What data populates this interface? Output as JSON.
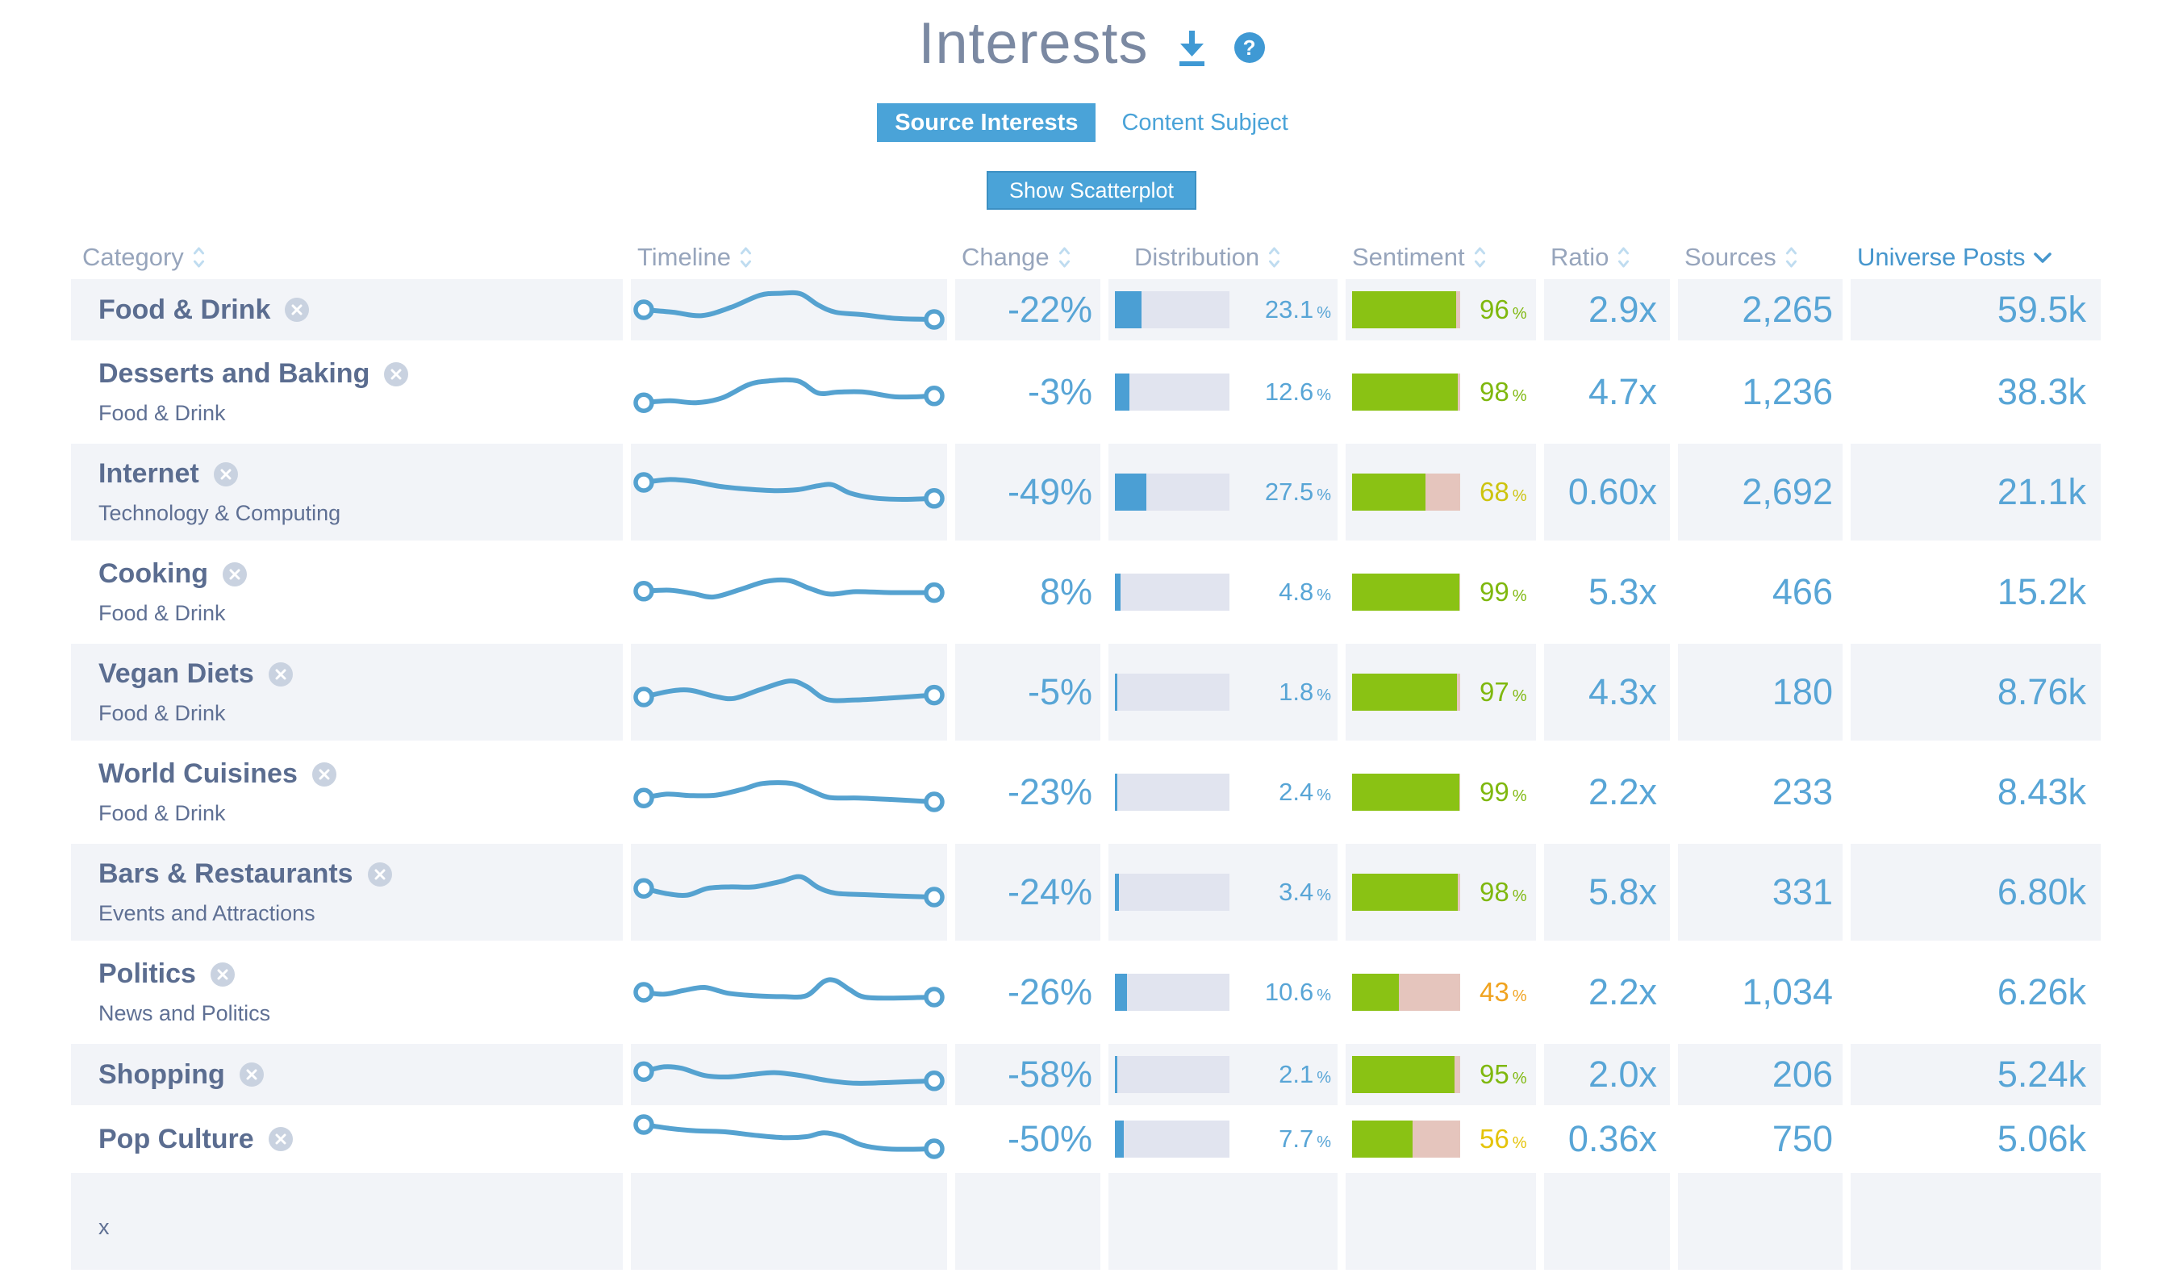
{
  "header": {
    "title": "Interests",
    "help_glyph": "?"
  },
  "tabs": [
    {
      "label": "Source Interests",
      "active": true
    },
    {
      "label": "Content Subject",
      "active": false
    }
  ],
  "scatterplot_button_label": "Show Scatterplot",
  "units": {
    "percent": "%"
  },
  "colors": {
    "accent_blue": "#4aa3d8",
    "value_blue": "#58a5d6",
    "sparkline_blue": "#55a2d0",
    "dist_fill": "#4b9fd4",
    "dist_track": "#e1e4ef",
    "sentiment_green_bar": "#8ac214",
    "sentiment_green_text": "#7fb80e",
    "sentiment_pink": "#e5c5bd",
    "sentiment_yellow_text": "#cdc40e",
    "sentiment_gold_text": "#e5c40a",
    "sentiment_orange_text": "#f0a31f",
    "row_shade": "#f2f4f8",
    "header_text": "#97a5bc",
    "sorted_header": "#4696cd",
    "category_text": "#5b6d90",
    "title_text": "#7b89a2"
  },
  "table": {
    "columns": [
      {
        "label": "Category",
        "sorted": false
      },
      {
        "label": "Timeline",
        "sorted": false
      },
      {
        "label": "Change",
        "sorted": false
      },
      {
        "label": "Distribution",
        "sorted": false
      },
      {
        "label": "Sentiment",
        "sorted": false
      },
      {
        "label": "Ratio",
        "sorted": false
      },
      {
        "label": "Sources",
        "sorted": false
      },
      {
        "label": "Universe Posts",
        "sorted": true
      }
    ],
    "rows": [
      {
        "name": "Food & Drink",
        "parent": "",
        "change": "-22%",
        "dist_value": "23.1",
        "dist_pct": 23.1,
        "sent_value": "96",
        "sent_pct": 96,
        "sent_color": "#7fb80e",
        "ratio": "2.9x",
        "sources": "2,265",
        "universe": "59.5k",
        "spark": [
          [
            0,
            0.5
          ],
          [
            0.1,
            0.55
          ],
          [
            0.2,
            0.62
          ],
          [
            0.3,
            0.45
          ],
          [
            0.4,
            0.2
          ],
          [
            0.47,
            0.16
          ],
          [
            0.54,
            0.17
          ],
          [
            0.6,
            0.4
          ],
          [
            0.66,
            0.55
          ],
          [
            0.75,
            0.6
          ],
          [
            0.87,
            0.68
          ],
          [
            1,
            0.7
          ]
        ]
      },
      {
        "name": "Desserts and Baking",
        "parent": "Food & Drink",
        "change": "-3%",
        "dist_value": "12.6",
        "dist_pct": 12.6,
        "sent_value": "98",
        "sent_pct": 98,
        "sent_color": "#7fb80e",
        "ratio": "4.7x",
        "sources": "1,236",
        "universe": "38.3k",
        "spark": [
          [
            0,
            0.72
          ],
          [
            0.09,
            0.68
          ],
          [
            0.18,
            0.72
          ],
          [
            0.27,
            0.62
          ],
          [
            0.36,
            0.35
          ],
          [
            0.43,
            0.27
          ],
          [
            0.53,
            0.27
          ],
          [
            0.6,
            0.52
          ],
          [
            0.67,
            0.5
          ],
          [
            0.76,
            0.5
          ],
          [
            0.87,
            0.6
          ],
          [
            1,
            0.58
          ]
        ]
      },
      {
        "name": "Internet",
        "parent": "Technology & Computing",
        "change": "-49%",
        "dist_value": "27.5",
        "dist_pct": 27.5,
        "sent_value": "68",
        "sent_pct": 68,
        "sent_color": "#cdc40e",
        "ratio": "0.60x",
        "sources": "2,692",
        "universe": "21.1k",
        "spark": [
          [
            0,
            0.3
          ],
          [
            0.09,
            0.24
          ],
          [
            0.17,
            0.28
          ],
          [
            0.26,
            0.38
          ],
          [
            0.36,
            0.44
          ],
          [
            0.45,
            0.47
          ],
          [
            0.53,
            0.45
          ],
          [
            0.6,
            0.37
          ],
          [
            0.65,
            0.35
          ],
          [
            0.71,
            0.52
          ],
          [
            0.79,
            0.62
          ],
          [
            0.89,
            0.65
          ],
          [
            1,
            0.63
          ]
        ]
      },
      {
        "name": "Cooking",
        "parent": "Food & Drink",
        "change": "8%",
        "dist_value": "4.8",
        "dist_pct": 4.8,
        "sent_value": "99",
        "sent_pct": 99,
        "sent_color": "#7fb80e",
        "ratio": "5.3x",
        "sources": "466",
        "universe": "15.2k",
        "spark": [
          [
            0,
            0.48
          ],
          [
            0.09,
            0.46
          ],
          [
            0.17,
            0.53
          ],
          [
            0.24,
            0.6
          ],
          [
            0.33,
            0.45
          ],
          [
            0.42,
            0.28
          ],
          [
            0.5,
            0.26
          ],
          [
            0.57,
            0.42
          ],
          [
            0.64,
            0.54
          ],
          [
            0.73,
            0.49
          ],
          [
            0.85,
            0.51
          ],
          [
            1,
            0.51
          ]
        ]
      },
      {
        "name": "Vegan Diets",
        "parent": "Food & Drink",
        "change": "-5%",
        "dist_value": "1.8",
        "dist_pct": 1.8,
        "sent_value": "97",
        "sent_pct": 97,
        "sent_color": "#7fb80e",
        "ratio": "4.3x",
        "sources": "180",
        "universe": "8.76k",
        "spark": [
          [
            0,
            0.6
          ],
          [
            0.09,
            0.48
          ],
          [
            0.16,
            0.46
          ],
          [
            0.24,
            0.58
          ],
          [
            0.31,
            0.63
          ],
          [
            0.4,
            0.45
          ],
          [
            0.5,
            0.27
          ],
          [
            0.56,
            0.38
          ],
          [
            0.63,
            0.65
          ],
          [
            0.73,
            0.66
          ],
          [
            0.85,
            0.62
          ],
          [
            1,
            0.56
          ]
        ]
      },
      {
        "name": "World Cuisines",
        "parent": "Food & Drink",
        "change": "-23%",
        "dist_value": "2.4",
        "dist_pct": 2.4,
        "sent_value": "99",
        "sent_pct": 99,
        "sent_color": "#7fb80e",
        "ratio": "2.2x",
        "sources": "233",
        "universe": "8.43k",
        "spark": [
          [
            0,
            0.62
          ],
          [
            0.08,
            0.54
          ],
          [
            0.16,
            0.57
          ],
          [
            0.25,
            0.56
          ],
          [
            0.34,
            0.44
          ],
          [
            0.41,
            0.32
          ],
          [
            0.51,
            0.32
          ],
          [
            0.58,
            0.48
          ],
          [
            0.64,
            0.61
          ],
          [
            0.74,
            0.62
          ],
          [
            0.85,
            0.65
          ],
          [
            1,
            0.7
          ]
        ]
      },
      {
        "name": "Bars & Restaurants",
        "parent": "Events and Attractions",
        "change": "-24%",
        "dist_value": "3.4",
        "dist_pct": 3.4,
        "sent_value": "98",
        "sent_pct": 98,
        "sent_color": "#7fb80e",
        "ratio": "5.8x",
        "sources": "331",
        "universe": "6.80k",
        "spark": [
          [
            0,
            0.42
          ],
          [
            0.08,
            0.53
          ],
          [
            0.15,
            0.56
          ],
          [
            0.22,
            0.42
          ],
          [
            0.3,
            0.39
          ],
          [
            0.38,
            0.39
          ],
          [
            0.47,
            0.28
          ],
          [
            0.54,
            0.18
          ],
          [
            0.6,
            0.4
          ],
          [
            0.66,
            0.52
          ],
          [
            0.76,
            0.55
          ],
          [
            0.88,
            0.58
          ],
          [
            1,
            0.6
          ]
        ]
      },
      {
        "name": "Politics",
        "parent": "News and Politics",
        "change": "-26%",
        "dist_value": "10.6",
        "dist_pct": 10.6,
        "sent_value": "43",
        "sent_pct": 43,
        "sent_color": "#f0a31f",
        "ratio": "2.2x",
        "sources": "1,034",
        "universe": "6.26k",
        "spark": [
          [
            0,
            0.5
          ],
          [
            0.07,
            0.54
          ],
          [
            0.14,
            0.46
          ],
          [
            0.21,
            0.4
          ],
          [
            0.29,
            0.52
          ],
          [
            0.38,
            0.57
          ],
          [
            0.48,
            0.59
          ],
          [
            0.56,
            0.57
          ],
          [
            0.62,
            0.28
          ],
          [
            0.66,
            0.26
          ],
          [
            0.71,
            0.45
          ],
          [
            0.76,
            0.6
          ],
          [
            0.86,
            0.62
          ],
          [
            1,
            0.6
          ]
        ]
      },
      {
        "name": "Shopping",
        "parent": "",
        "change": "-58%",
        "dist_value": "2.1",
        "dist_pct": 2.1,
        "sent_value": "95",
        "sent_pct": 95,
        "sent_color": "#7fb80e",
        "ratio": "2.0x",
        "sources": "206",
        "universe": "5.24k",
        "spark": [
          [
            0,
            0.44
          ],
          [
            0.07,
            0.34
          ],
          [
            0.13,
            0.37
          ],
          [
            0.21,
            0.52
          ],
          [
            0.29,
            0.55
          ],
          [
            0.37,
            0.5
          ],
          [
            0.45,
            0.46
          ],
          [
            0.54,
            0.52
          ],
          [
            0.63,
            0.62
          ],
          [
            0.73,
            0.68
          ],
          [
            0.86,
            0.66
          ],
          [
            1,
            0.63
          ]
        ]
      },
      {
        "name": "Pop Culture",
        "parent": "",
        "change": "-50%",
        "dist_value": "7.7",
        "dist_pct": 7.7,
        "sent_value": "56",
        "sent_pct": 56,
        "sent_color": "#e5c40a",
        "ratio": "0.36x",
        "sources": "750",
        "universe": "5.06k",
        "spark": [
          [
            0,
            0.2
          ],
          [
            0.09,
            0.28
          ],
          [
            0.18,
            0.33
          ],
          [
            0.28,
            0.35
          ],
          [
            0.38,
            0.42
          ],
          [
            0.48,
            0.47
          ],
          [
            0.56,
            0.45
          ],
          [
            0.62,
            0.37
          ],
          [
            0.68,
            0.44
          ],
          [
            0.75,
            0.62
          ],
          [
            0.83,
            0.7
          ],
          [
            0.92,
            0.71
          ],
          [
            1,
            0.7
          ]
        ]
      },
      {
        "partial": true,
        "name": "",
        "parent": "x",
        "change": "",
        "dist_value": "",
        "dist_pct": 0,
        "sent_value": "",
        "sent_pct": 0,
        "sent_color": "",
        "ratio": "",
        "sources": "",
        "universe": ""
      }
    ]
  }
}
